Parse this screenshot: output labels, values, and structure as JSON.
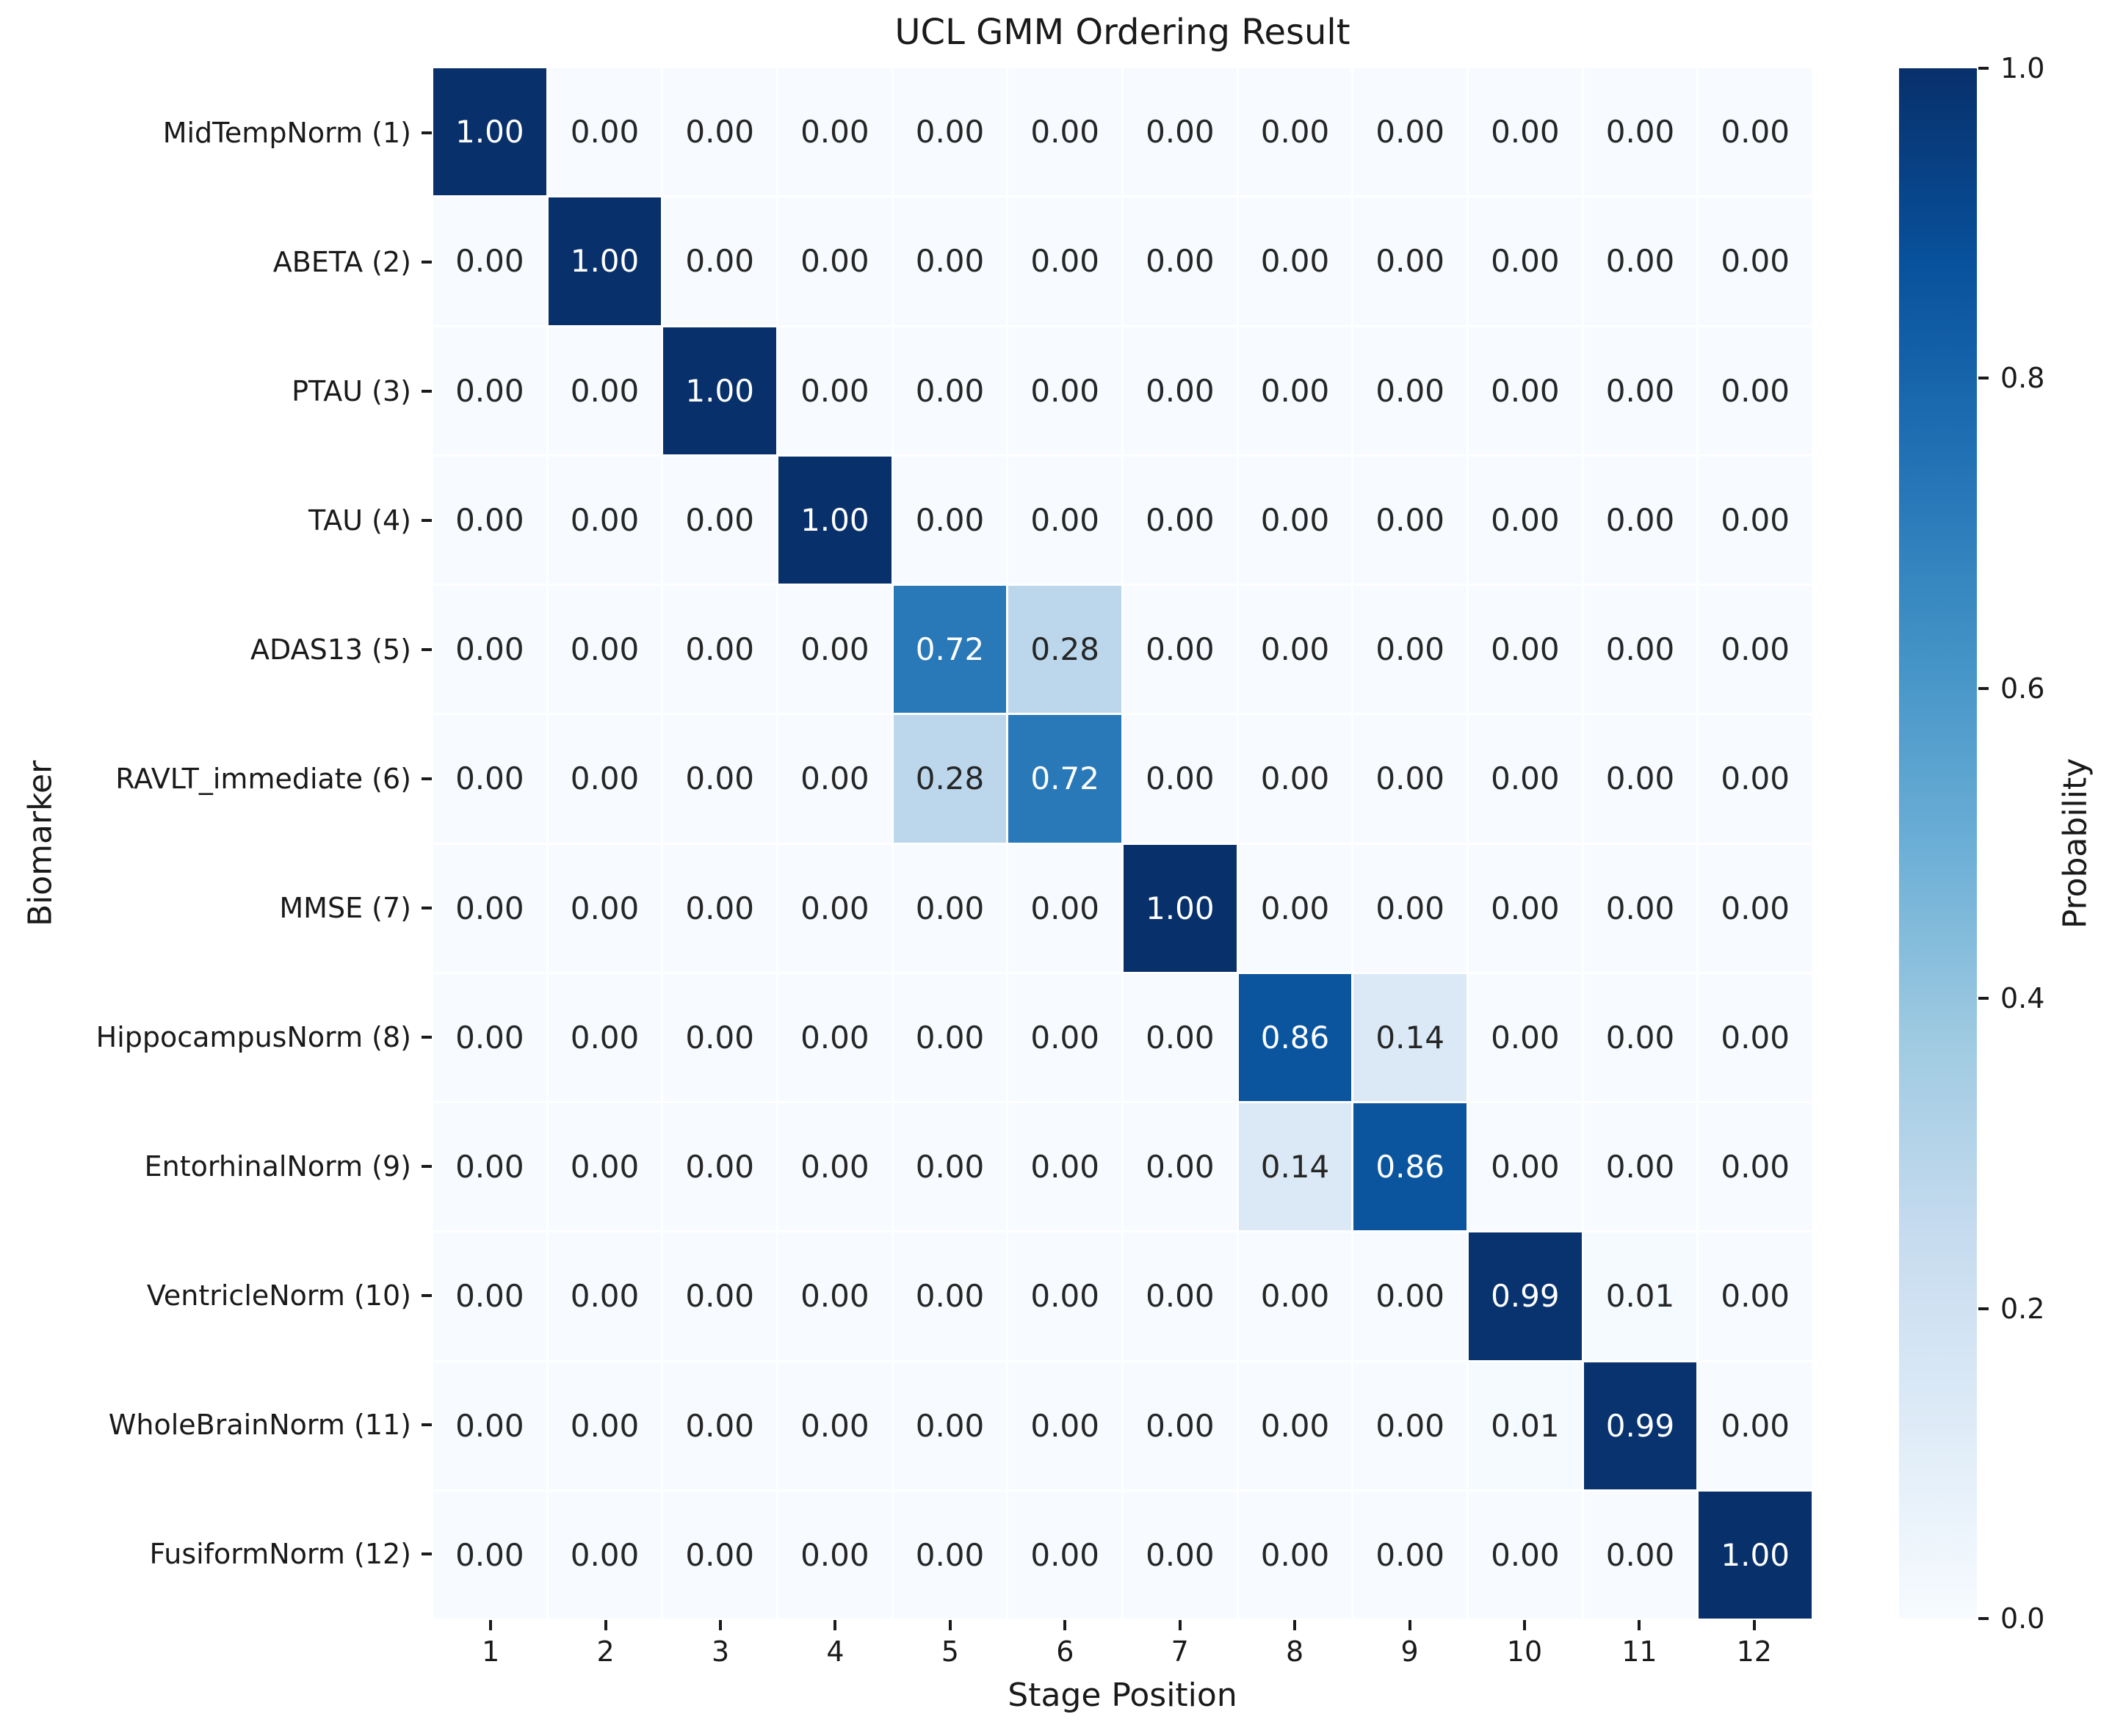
{
  "chart_data": {
    "type": "heatmap",
    "title": "UCL GMM Ordering Result",
    "xlabel": "Stage Position",
    "ylabel": "Biomarker",
    "x_ticklabels": [
      "1",
      "2",
      "3",
      "4",
      "5",
      "6",
      "7",
      "8",
      "9",
      "10",
      "11",
      "12"
    ],
    "y_ticklabels": [
      "MidTempNorm (1)",
      "ABETA (2)",
      "PTAU (3)",
      "TAU (4)",
      "ADAS13 (5)",
      "RAVLT_immediate (6)",
      "MMSE (7)",
      "HippocampusNorm (8)",
      "EntorhinalNorm (9)",
      "VentricleNorm (10)",
      "WholeBrainNorm (11)",
      "FusiformNorm (12)"
    ],
    "values": [
      [
        1.0,
        0.0,
        0.0,
        0.0,
        0.0,
        0.0,
        0.0,
        0.0,
        0.0,
        0.0,
        0.0,
        0.0
      ],
      [
        0.0,
        1.0,
        0.0,
        0.0,
        0.0,
        0.0,
        0.0,
        0.0,
        0.0,
        0.0,
        0.0,
        0.0
      ],
      [
        0.0,
        0.0,
        1.0,
        0.0,
        0.0,
        0.0,
        0.0,
        0.0,
        0.0,
        0.0,
        0.0,
        0.0
      ],
      [
        0.0,
        0.0,
        0.0,
        1.0,
        0.0,
        0.0,
        0.0,
        0.0,
        0.0,
        0.0,
        0.0,
        0.0
      ],
      [
        0.0,
        0.0,
        0.0,
        0.0,
        0.72,
        0.28,
        0.0,
        0.0,
        0.0,
        0.0,
        0.0,
        0.0
      ],
      [
        0.0,
        0.0,
        0.0,
        0.0,
        0.28,
        0.72,
        0.0,
        0.0,
        0.0,
        0.0,
        0.0,
        0.0
      ],
      [
        0.0,
        0.0,
        0.0,
        0.0,
        0.0,
        0.0,
        1.0,
        0.0,
        0.0,
        0.0,
        0.0,
        0.0
      ],
      [
        0.0,
        0.0,
        0.0,
        0.0,
        0.0,
        0.0,
        0.0,
        0.86,
        0.14,
        0.0,
        0.0,
        0.0
      ],
      [
        0.0,
        0.0,
        0.0,
        0.0,
        0.0,
        0.0,
        0.0,
        0.14,
        0.86,
        0.0,
        0.0,
        0.0
      ],
      [
        0.0,
        0.0,
        0.0,
        0.0,
        0.0,
        0.0,
        0.0,
        0.0,
        0.0,
        0.99,
        0.01,
        0.0
      ],
      [
        0.0,
        0.0,
        0.0,
        0.0,
        0.0,
        0.0,
        0.0,
        0.0,
        0.0,
        0.01,
        0.99,
        0.0
      ],
      [
        0.0,
        0.0,
        0.0,
        0.0,
        0.0,
        0.0,
        0.0,
        0.0,
        0.0,
        0.0,
        0.0,
        1.0
      ]
    ],
    "value_decimals": 2,
    "vmin": 0.0,
    "vmax": 1.0,
    "grid_on": true,
    "grid_line_color": "#ffffff",
    "colorbar": {
      "label": "Probability",
      "ticks": [
        "1.0",
        "0.8",
        "0.6",
        "0.4",
        "0.2",
        "0.0"
      ],
      "position": "right"
    },
    "colormap": {
      "name": "Blues",
      "stops": [
        "#f7fbff",
        "#deebf7",
        "#c6dbef",
        "#9ecae1",
        "#6baed6",
        "#4292c6",
        "#2171b5",
        "#08519c",
        "#08306b"
      ]
    },
    "annotation_text_colors": {
      "light_cells": "#262626",
      "dark_cells": "#ffffff"
    }
  }
}
